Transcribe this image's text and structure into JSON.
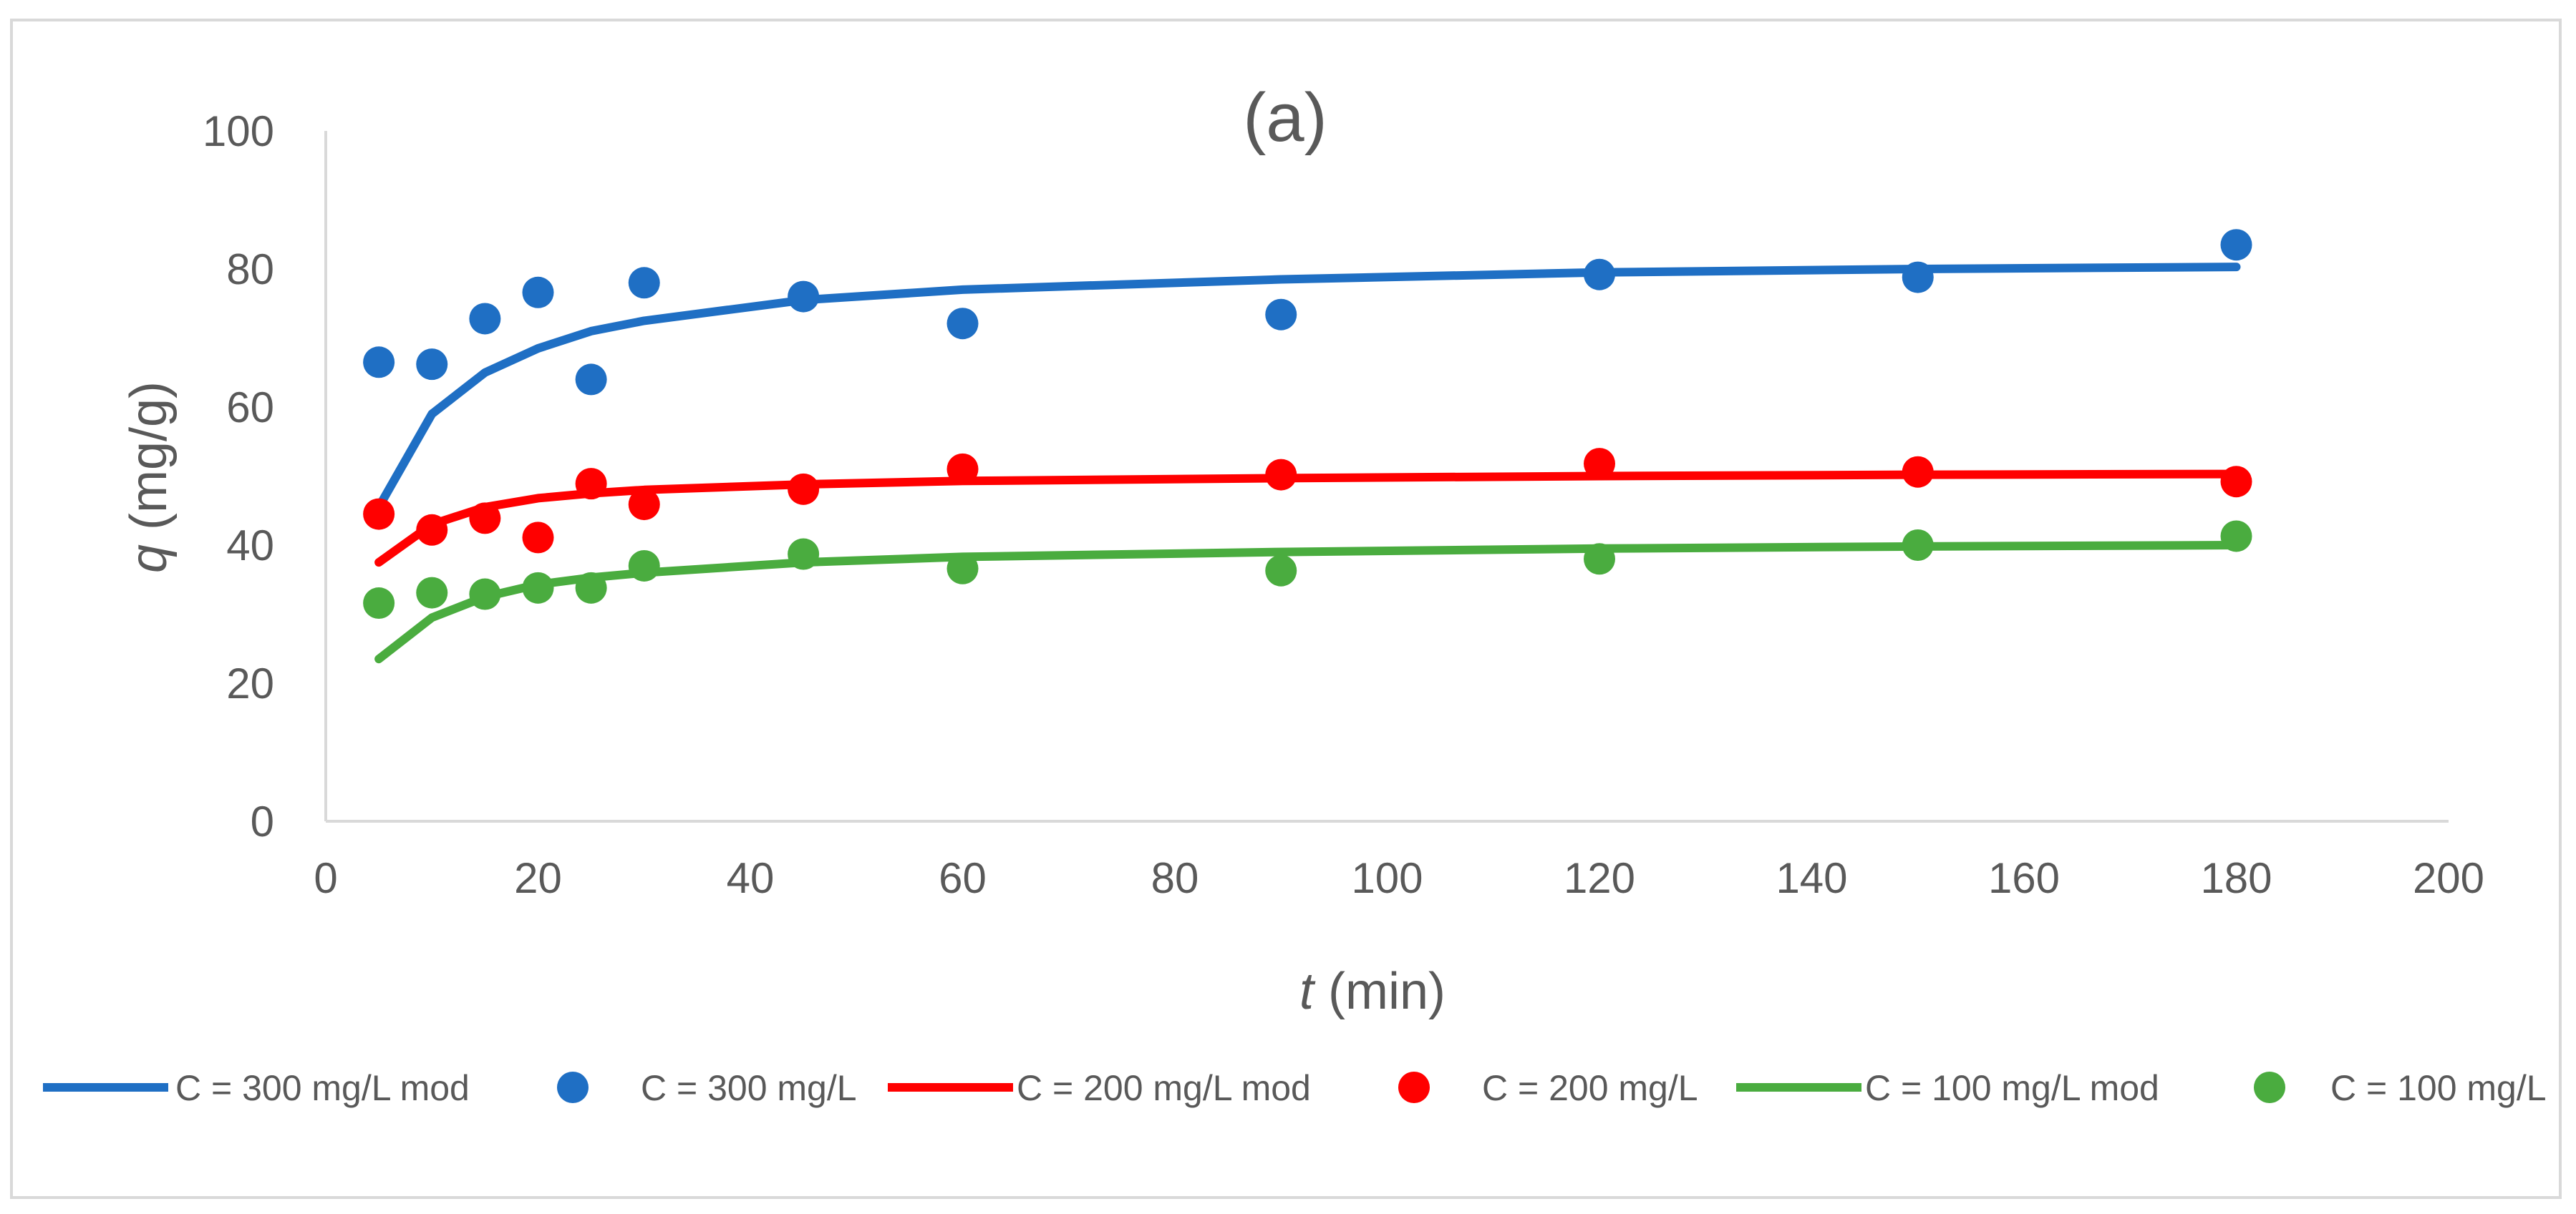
{
  "chart_data": {
    "type": "scatter",
    "title": "(a)",
    "xlabel_italic": "t",
    "xlabel_rest": " (min)",
    "ylabel_italic": "q",
    "ylabel_rest": " (mg/g)",
    "xlim": [
      0,
      200
    ],
    "ylim": [
      0,
      100
    ],
    "xticks": [
      0,
      20,
      40,
      60,
      80,
      100,
      120,
      140,
      160,
      180,
      200
    ],
    "yticks": [
      0,
      20,
      40,
      60,
      80,
      100
    ],
    "grid": false,
    "legend_position": "bottom",
    "series": [
      {
        "name": "C = 300 mg/L mod",
        "kind": "line",
        "color": "#1f6fc4",
        "x": [
          5,
          10,
          15,
          20,
          25,
          30,
          45,
          60,
          90,
          120,
          150,
          180
        ],
        "y": [
          45.5,
          59.0,
          65.0,
          68.5,
          71.0,
          72.5,
          75.5,
          77.0,
          78.5,
          79.5,
          80.0,
          80.3
        ]
      },
      {
        "name": "C = 300 mg/L",
        "kind": "points",
        "color": "#1f6fc4",
        "x": [
          5,
          10,
          15,
          20,
          25,
          30,
          45,
          60,
          90,
          120,
          150,
          180
        ],
        "y": [
          66.5,
          66.2,
          72.8,
          76.6,
          64.0,
          78.0,
          76.0,
          72.1,
          73.4,
          79.2,
          78.8,
          83.5
        ]
      },
      {
        "name": "C = 200 mg/L mod",
        "kind": "line",
        "color": "#ff0000",
        "x": [
          5,
          10,
          15,
          20,
          25,
          30,
          45,
          60,
          90,
          120,
          150,
          180
        ],
        "y": [
          37.5,
          43.0,
          45.5,
          46.8,
          47.5,
          48.0,
          48.8,
          49.3,
          49.7,
          50.0,
          50.2,
          50.3
        ]
      },
      {
        "name": "C = 200 mg/L",
        "kind": "points",
        "color": "#ff0000",
        "x": [
          5,
          10,
          15,
          20,
          25,
          30,
          45,
          60,
          90,
          120,
          150,
          180
        ],
        "y": [
          44.5,
          42.2,
          43.9,
          41.1,
          48.9,
          45.9,
          48.1,
          51.0,
          50.2,
          51.8,
          50.6,
          49.2
        ]
      },
      {
        "name": "C = 100 mg/L mod",
        "kind": "line",
        "color": "#4aac3f",
        "x": [
          5,
          10,
          15,
          20,
          25,
          30,
          45,
          60,
          90,
          120,
          150,
          180
        ],
        "y": [
          23.5,
          29.5,
          32.5,
          34.3,
          35.3,
          36.0,
          37.5,
          38.3,
          39.0,
          39.5,
          39.8,
          40.0
        ]
      },
      {
        "name": "C = 100 mg/L",
        "kind": "points",
        "color": "#4aac3f",
        "x": [
          5,
          10,
          15,
          20,
          25,
          30,
          45,
          60,
          90,
          120,
          150,
          180
        ],
        "y": [
          31.6,
          33.1,
          32.9,
          33.8,
          33.8,
          37.0,
          38.7,
          36.6,
          36.3,
          38.0,
          40.0,
          41.3
        ]
      }
    ]
  }
}
